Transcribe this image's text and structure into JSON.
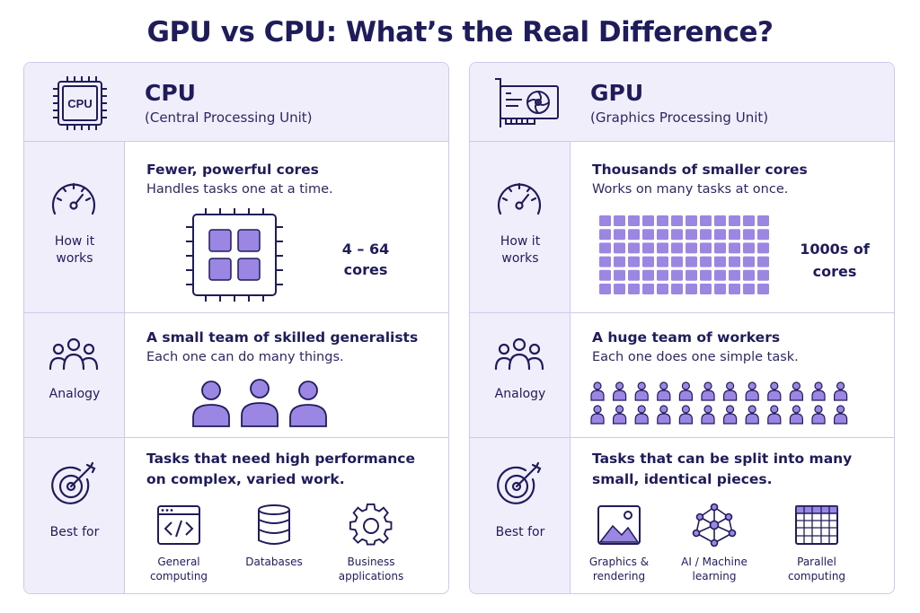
{
  "title": "GPU vs CPU: What’s the Real Difference?",
  "colors": {
    "accent": "#9b86e3",
    "dark": "#1f1c5b",
    "panel_bg": "#f1eefb",
    "border": "#cfc9ec"
  },
  "cpu": {
    "icon": "cpu-chip-icon",
    "icon_text": "CPU",
    "name": "CPU",
    "full_name": "(Central Processing Unit)",
    "how": {
      "label_1": "How it",
      "label_2": "works",
      "heading": "Fewer, powerful cores",
      "sub": "Handles tasks one at a time.",
      "cores_1": "4 – 64",
      "cores_2": "cores"
    },
    "analogy": {
      "label": "Analogy",
      "heading": "A small team of skilled generalists",
      "sub": "Each one can do many things."
    },
    "best": {
      "label": "Best for",
      "heading_1": "Tasks that need high performance",
      "heading_2": "on complex, varied work.",
      "items": [
        {
          "icon": "code-window-icon",
          "line1": "General",
          "line2": "computing"
        },
        {
          "icon": "database-icon",
          "line1": "Databases",
          "line2": ""
        },
        {
          "icon": "gear-icon",
          "line1": "Business",
          "line2": "applications"
        }
      ]
    }
  },
  "gpu": {
    "icon": "graphics-card-icon",
    "name": "GPU",
    "full_name": "(Graphics Processing Unit)",
    "how": {
      "label_1": "How it",
      "label_2": "works",
      "heading": "Thousands of smaller cores",
      "sub": "Works on many tasks at once.",
      "cores_1": "1000s of",
      "cores_2": "cores"
    },
    "analogy": {
      "label": "Analogy",
      "heading": "A huge team of workers",
      "sub": "Each one does one simple task."
    },
    "best": {
      "label": "Best for",
      "heading_1": "Tasks that can be split into many",
      "heading_2": "small, identical pieces.",
      "items": [
        {
          "icon": "image-icon",
          "line1": "Graphics &",
          "line2": "rendering"
        },
        {
          "icon": "neural-network-icon",
          "line1": "AI / Machine",
          "line2": "learning"
        },
        {
          "icon": "grid-icon",
          "line1": "Parallel",
          "line2": "computing"
        }
      ]
    }
  }
}
